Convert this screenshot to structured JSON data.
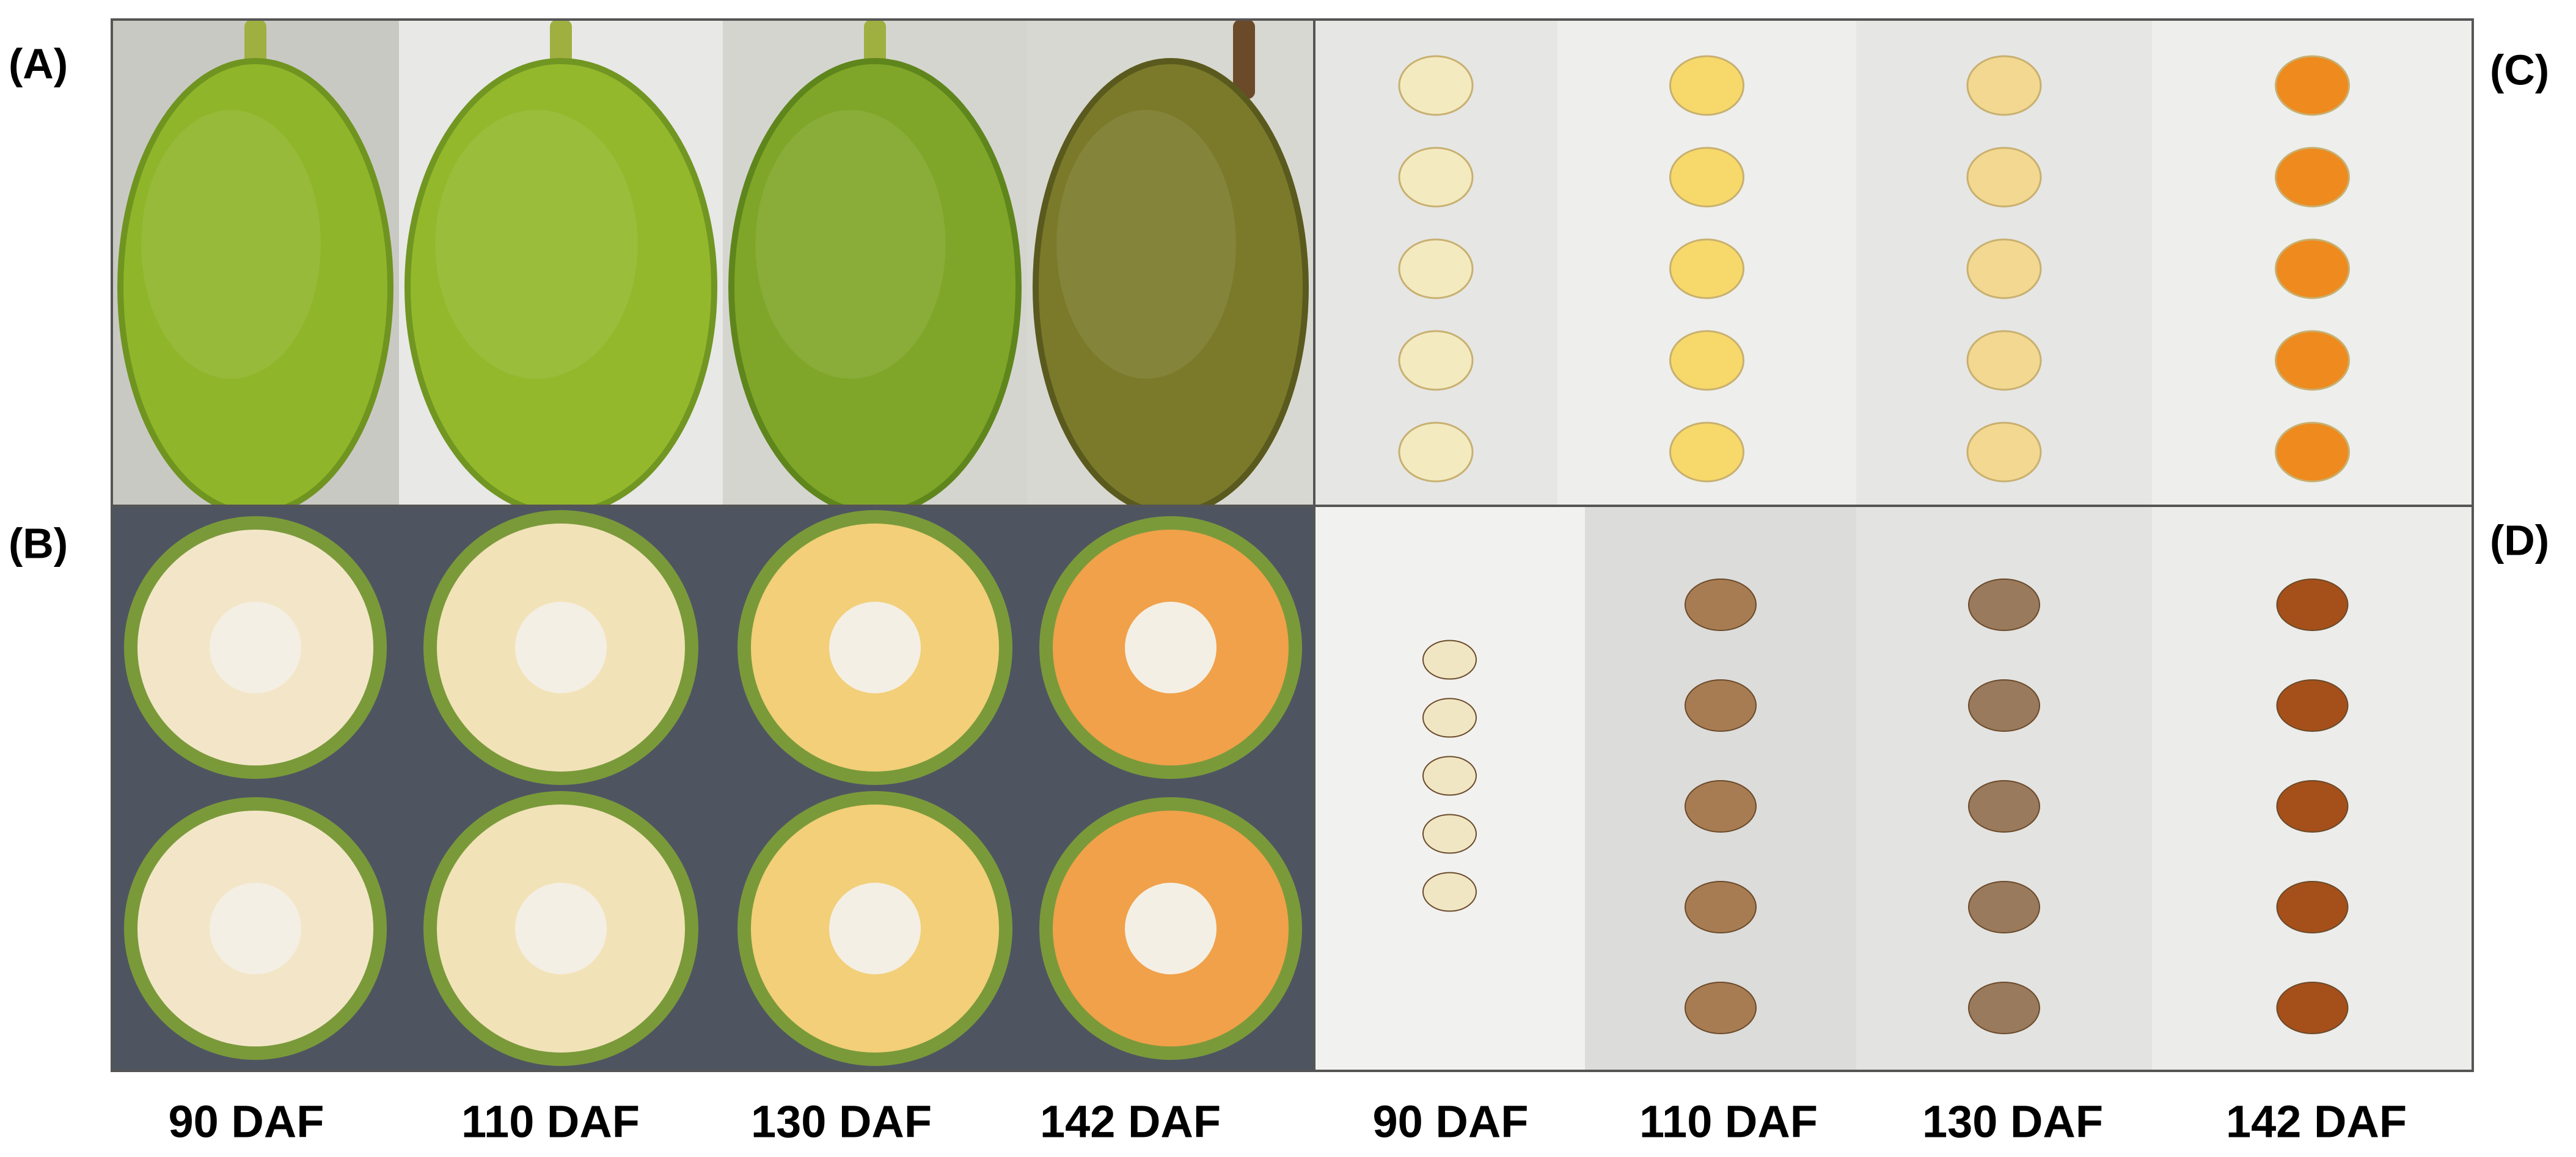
{
  "panel_labels": [
    "(A)",
    "(B)",
    "(C)",
    "(D)"
  ],
  "left_labels": [
    "90 DAF",
    "110 DAF",
    "130 DAF",
    "142 DAF"
  ],
  "right_labels": [
    "90 DAF",
    "110 DAF",
    "130 DAF",
    "142 DAF"
  ]
}
